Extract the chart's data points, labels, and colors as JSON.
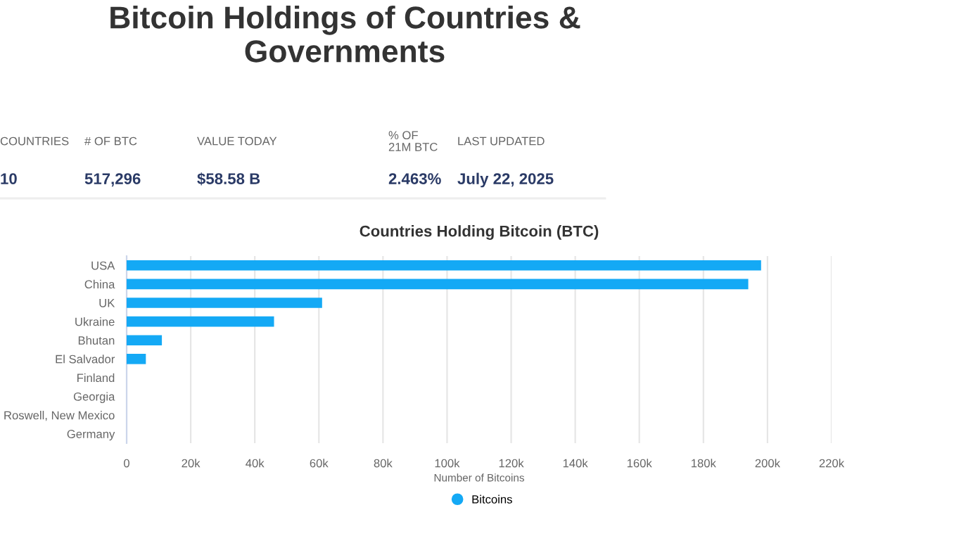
{
  "chart_data": [
    {
      "type": "other",
      "title": "Bitcoin Holdings of Countries &\nGovernments",
      "annotations": [
        "COUNTRIES",
        "# OF BTC",
        "VALUE TODAY",
        "% OF\n21M BTC",
        "LAST UPDATED",
        "10",
        "517,296",
        "$58.58 B",
        "2.463%",
        "July 22, 2025"
      ]
    },
    {
      "type": "bar",
      "orientation": "horizontal",
      "title": "Countries Holding Bitcoin (BTC)",
      "xlabel": "Number of Bitcoins",
      "categories": [
        "USA",
        "China",
        "UK",
        "Ukraine",
        "Bhutan",
        "El Salvador",
        "Finland",
        "Georgia",
        "Roswell, New Mexico",
        "Germany"
      ],
      "series": [
        {
          "name": "Bitcoins",
          "color": "#14a9f5",
          "values": [
            198000,
            194000,
            61000,
            46000,
            11000,
            6000,
            0,
            0,
            0,
            0
          ]
        }
      ],
      "xlim": [
        0,
        220000
      ],
      "xticks": [
        {
          "value": 0,
          "label": "0"
        },
        {
          "value": 20000,
          "label": "20k"
        },
        {
          "value": 40000,
          "label": "40k"
        },
        {
          "value": 60000,
          "label": "60k"
        },
        {
          "value": 80000,
          "label": "80k"
        },
        {
          "value": 100000,
          "label": "100k"
        },
        {
          "value": 120000,
          "label": "120k"
        },
        {
          "value": 140000,
          "label": "140k"
        },
        {
          "value": 160000,
          "label": "160k"
        },
        {
          "value": 180000,
          "label": "180k"
        },
        {
          "value": 200000,
          "label": "200k"
        },
        {
          "value": 220000,
          "label": "220k"
        }
      ],
      "grid": "x",
      "legend": "bottom"
    }
  ]
}
